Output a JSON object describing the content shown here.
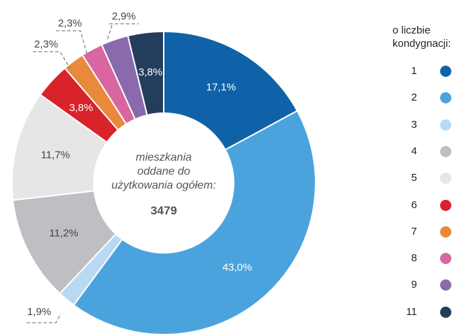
{
  "chart_data": {
    "type": "pie",
    "donut": true,
    "center": {
      "lines": [
        "mieszkania",
        "oddane do",
        "użytkowania ogółem:"
      ],
      "total": "3479"
    },
    "legend": {
      "title_lines": [
        "o liczbie",
        "kondygnacji:"
      ],
      "placement": "right"
    },
    "slices": [
      {
        "category": "1",
        "value": 17.1,
        "label": "17,1%",
        "color": "#0f62a8"
      },
      {
        "category": "2",
        "value": 43.0,
        "label": "43,0%",
        "color": "#4ba3dd"
      },
      {
        "category": "3",
        "value": 1.9,
        "label": "1,9%",
        "color": "#b9d9f2"
      },
      {
        "category": "4",
        "value": 11.2,
        "label": "11,2%",
        "color": "#bdbfc2"
      },
      {
        "category": "5",
        "value": 11.7,
        "label": "11,7%",
        "color": "#e6e6e7"
      },
      {
        "category": "6",
        "value": 3.8,
        "label": "3,8%",
        "color": "#d8232a"
      },
      {
        "category": "7",
        "value": 2.3,
        "label": "2,3%",
        "color": "#e8893c"
      },
      {
        "category": "8",
        "value": 2.3,
        "label": "2,3%",
        "color": "#d9669f"
      },
      {
        "category": "9",
        "value": 2.9,
        "label": "2,9%",
        "color": "#8a6aac"
      },
      {
        "category": "11",
        "value": 3.8,
        "label": "3,8%",
        "color": "#243d5c"
      }
    ]
  }
}
